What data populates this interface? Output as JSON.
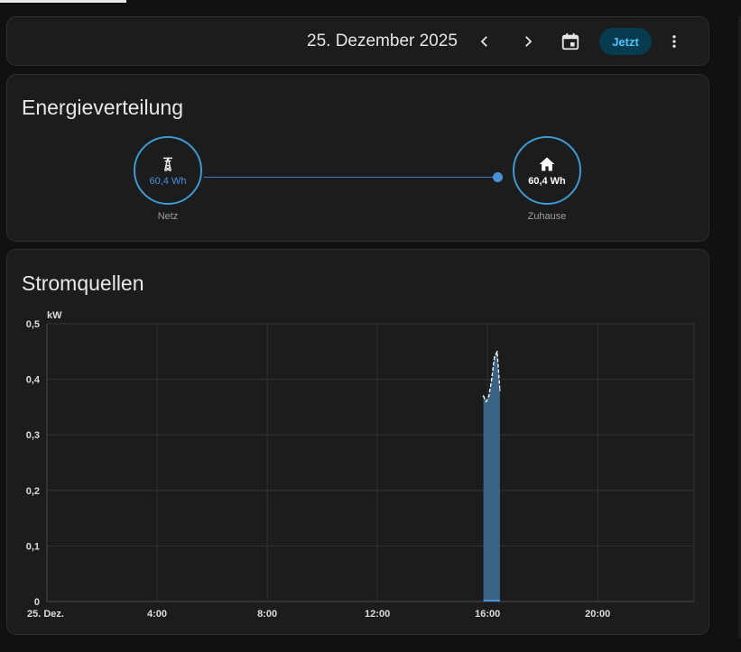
{
  "header": {
    "date_label": "25. Dezember 2025",
    "now_label": "Jetzt",
    "prev_icon": "chevron-left-icon",
    "next_icon": "chevron-right-icon",
    "calendar_icon": "calendar-icon",
    "more_icon": "dots-vertical-icon"
  },
  "energy": {
    "title": "Energieverteilung",
    "grid": {
      "value": "60,4 Wh",
      "label": "Netz",
      "icon": "transmission-tower-icon"
    },
    "home": {
      "value": "60,4 Wh",
      "label": "Zuhause",
      "icon": "home-icon"
    }
  },
  "sources": {
    "title": "Stromquellen",
    "chart_data": {
      "type": "area",
      "ylabel": "kW",
      "ylim": [
        0,
        0.5
      ],
      "y_ticks": [
        {
          "value": 0,
          "label": "0"
        },
        {
          "value": 0.1,
          "label": "0,1"
        },
        {
          "value": 0.2,
          "label": "0,2"
        },
        {
          "value": 0.3,
          "label": "0,3"
        },
        {
          "value": 0.4,
          "label": "0,4"
        },
        {
          "value": 0.5,
          "label": "0,5"
        }
      ],
      "xlim": [
        0,
        23.5
      ],
      "x_ticks": [
        {
          "value": 0,
          "label": "25. Dez."
        },
        {
          "value": 4,
          "label": "4:00"
        },
        {
          "value": 8,
          "label": "8:00"
        },
        {
          "value": 12,
          "label": "12:00"
        },
        {
          "value": 16,
          "label": "16:00"
        },
        {
          "value": 20,
          "label": "20:00"
        }
      ],
      "x_gridlines": [
        0,
        4,
        8,
        12,
        16,
        20,
        23.5
      ],
      "grid": true,
      "colors": {
        "fill": "#3e6f97",
        "line": "#ffffff"
      },
      "series": [
        {
          "x": [
            15.85,
            15.95,
            16.05,
            16.15,
            16.25,
            16.35,
            16.45
          ],
          "y": [
            0.37,
            0.36,
            0.37,
            0.4,
            0.44,
            0.45,
            0.38
          ]
        }
      ]
    }
  }
}
